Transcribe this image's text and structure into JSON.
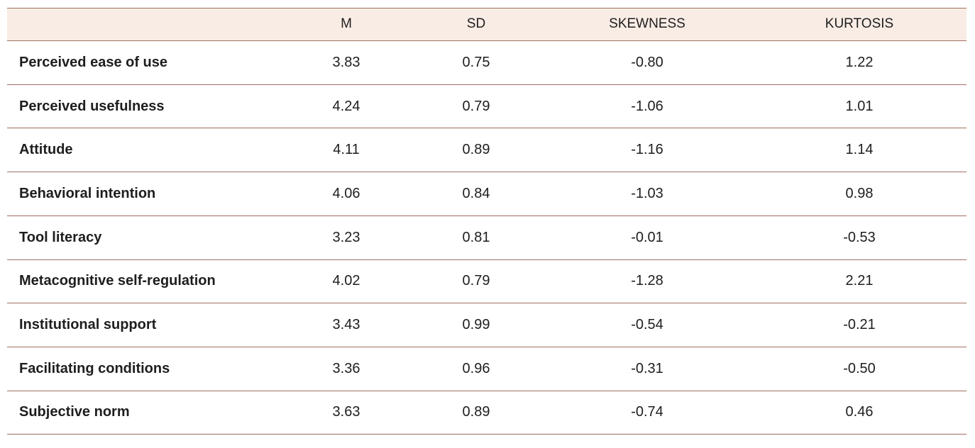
{
  "table": {
    "columns": [
      "M",
      "SD",
      "SKEWNESS",
      "KURTOSIS"
    ],
    "rows": [
      [
        "Perceived ease of use",
        "3.83",
        "0.75",
        "-0.80",
        "1.22"
      ],
      [
        "Perceived usefulness",
        "4.24",
        "0.79",
        "-1.06",
        "1.01"
      ],
      [
        "Attitude",
        "4.11",
        "0.89",
        "-1.16",
        "1.14"
      ],
      [
        "Behavioral intention",
        "4.06",
        "0.84",
        "-1.03",
        "0.98"
      ],
      [
        "Tool literacy",
        "3.23",
        "0.81",
        "-0.01",
        "-0.53"
      ],
      [
        "Metacognitive self-regulation",
        "4.02",
        "0.79",
        "-1.28",
        "2.21"
      ],
      [
        "Institutional support",
        "3.43",
        "0.99",
        "-0.54",
        "-0.21"
      ],
      [
        "Facilitating conditions",
        "3.36",
        "0.96",
        "-0.31",
        "-0.50"
      ],
      [
        "Subjective norm",
        "3.63",
        "0.89",
        "-0.74",
        "0.46"
      ]
    ]
  }
}
